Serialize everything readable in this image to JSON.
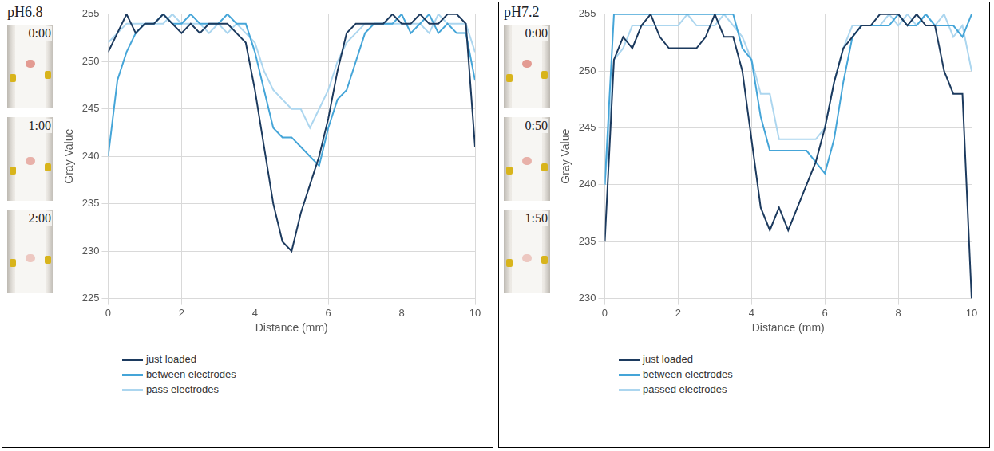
{
  "chart_data": [
    {
      "type": "line",
      "title": "pH6.8",
      "annotations": [
        "0:00",
        "1:00",
        "2:00"
      ],
      "x_label": "Distance (mm)",
      "y_label": "Gray Value",
      "x": [
        0,
        0.25,
        0.5,
        0.75,
        1,
        1.25,
        1.5,
        1.75,
        2,
        2.25,
        2.5,
        2.75,
        3,
        3.25,
        3.5,
        3.75,
        4,
        4.25,
        4.5,
        4.75,
        5,
        5.25,
        5.5,
        5.75,
        6,
        6.25,
        6.5,
        6.75,
        7,
        7.25,
        7.5,
        7.75,
        8,
        8.25,
        8.5,
        8.75,
        9,
        9.25,
        9.5,
        9.75,
        10
      ],
      "series": [
        {
          "name": "just loaded",
          "color": "#1c3a5e",
          "values": [
            251,
            253,
            255,
            253,
            254,
            254,
            255,
            254,
            253,
            254,
            253,
            254,
            254,
            254,
            253,
            252,
            247,
            241,
            235,
            231,
            230,
            234,
            237,
            240,
            244,
            249,
            253,
            254,
            254,
            254,
            254,
            255,
            254,
            254,
            255,
            254,
            254,
            255,
            255,
            254,
            241
          ]
        },
        {
          "name": "between electrodes",
          "color": "#45a5d8",
          "values": [
            240,
            248,
            251,
            253,
            254,
            254,
            255,
            254,
            254,
            255,
            254,
            254,
            254,
            255,
            254,
            254,
            251,
            247,
            243,
            242,
            242,
            241,
            240,
            239,
            243,
            246,
            247,
            250,
            253,
            254,
            254,
            254,
            255,
            253,
            254,
            255,
            253,
            254,
            253,
            253,
            248
          ]
        },
        {
          "name": "pass electrodes",
          "color": "#acd6ef",
          "values": [
            252,
            253,
            254,
            254,
            254,
            254,
            254,
            255,
            254,
            254,
            254,
            253,
            254,
            253,
            254,
            253,
            252,
            249,
            247,
            246,
            245,
            245,
            243,
            245,
            247,
            250,
            252,
            253,
            254,
            254,
            254,
            254,
            254,
            254,
            254,
            253,
            255,
            254,
            254,
            254,
            251
          ]
        }
      ],
      "xlim": [
        0,
        10
      ],
      "xticks": [
        0,
        2,
        4,
        6,
        8,
        10
      ],
      "ylim": [
        225,
        255
      ],
      "yticks": [
        225,
        230,
        235,
        240,
        245,
        250,
        255
      ],
      "grid": true,
      "legend": "bottom"
    },
    {
      "type": "line",
      "title": "pH7.2",
      "annotations": [
        "0:00",
        "0:50",
        "1:50"
      ],
      "x_label": "Distance (mm)",
      "y_label": "Gray Value",
      "x": [
        0,
        0.25,
        0.5,
        0.75,
        1,
        1.25,
        1.5,
        1.75,
        2,
        2.25,
        2.5,
        2.75,
        3,
        3.25,
        3.5,
        3.75,
        4,
        4.25,
        4.5,
        4.75,
        5,
        5.25,
        5.5,
        5.75,
        6,
        6.25,
        6.5,
        6.75,
        7,
        7.25,
        7.5,
        7.75,
        8,
        8.25,
        8.5,
        8.75,
        9,
        9.25,
        9.5,
        9.75,
        10
      ],
      "series": [
        {
          "name": "just loaded",
          "color": "#1c3a5e",
          "values": [
            235,
            251,
            253,
            252,
            254,
            255,
            253,
            252,
            252,
            252,
            252,
            253,
            255,
            253,
            253,
            250,
            244,
            238,
            236,
            238,
            236,
            238,
            240,
            242,
            245,
            249,
            252,
            253,
            254,
            254,
            255,
            255,
            255,
            254,
            255,
            254,
            254,
            250,
            248,
            248,
            230
          ]
        },
        {
          "name": "between electrodes",
          "color": "#45a5d8",
          "values": [
            240,
            255,
            255,
            255,
            255,
            255,
            255,
            255,
            255,
            255,
            255,
            255,
            255,
            255,
            255,
            252,
            251,
            246,
            243,
            243,
            243,
            243,
            243,
            242,
            241,
            244,
            249,
            253,
            254,
            254,
            254,
            254,
            255,
            254,
            254,
            255,
            254,
            254,
            254,
            253,
            255
          ]
        },
        {
          "name": "passed electrodes",
          "color": "#acd6ef",
          "values": [
            240,
            251,
            252,
            254,
            254,
            254,
            254,
            254,
            254,
            255,
            254,
            254,
            254,
            255,
            254,
            253,
            251,
            248,
            248,
            244,
            244,
            244,
            244,
            244,
            245,
            249,
            252,
            254,
            254,
            254,
            254,
            255,
            254,
            255,
            254,
            255,
            254,
            255,
            253,
            254,
            250
          ]
        }
      ],
      "xlim": [
        0,
        10
      ],
      "xticks": [
        0,
        2,
        4,
        6,
        8,
        10
      ],
      "ylim": [
        230,
        255
      ],
      "yticks": [
        230,
        235,
        240,
        245,
        250,
        255
      ],
      "grid": true,
      "legend": "bottom"
    }
  ]
}
